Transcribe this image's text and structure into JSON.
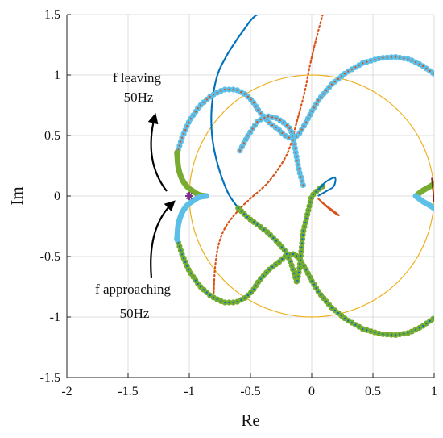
{
  "chart_data": {
    "type": "scatter",
    "title": "",
    "xlabel": "Re",
    "ylabel": "Im",
    "xlim": [
      -2,
      1
    ],
    "ylim": [
      -1.5,
      1.5
    ],
    "xticks": [
      -2,
      -1.5,
      -1,
      -0.5,
      0,
      0.5,
      1
    ],
    "yticks": [
      -1.5,
      -1,
      -0.5,
      0,
      0.5,
      1,
      1.5
    ],
    "xtick_labels": [
      "-2",
      "-1.5",
      "-1",
      "-0.5",
      "0",
      "0.5",
      "1"
    ],
    "ytick_labels": [
      "-1.5",
      "-1",
      "-0.5",
      "0",
      "0.5",
      "1",
      "1.5"
    ],
    "grid": true,
    "colors": {
      "blue": "#0072bd",
      "orange": "#d95319",
      "circle": "#edb120",
      "light_blue": "#5bbfe8",
      "green": "#77ac30",
      "dark_red": "#8b1a1a",
      "marker": "#7e2f8e",
      "arrow": "#000000"
    },
    "unit_circle": {
      "center": [
        0,
        0
      ],
      "radius": 1
    },
    "critical_point": [
      -1,
      0
    ],
    "annotations": {
      "leaving_line1": "f leaving",
      "leaving_line2": "50Hz",
      "approaching_line1": "f approaching",
      "approaching_line2": "50Hz"
    },
    "series": [
      {
        "style": "blue-dotted",
        "x": [
          -0.6,
          -0.68,
          -0.75,
          -0.8,
          -0.82,
          -0.81,
          -0.77,
          -0.7,
          -0.62,
          -0.55,
          -0.5,
          -0.46,
          -0.44
        ],
        "y": [
          -0.1,
          0.02,
          0.2,
          0.4,
          0.6,
          0.8,
          1.0,
          1.15,
          1.28,
          1.38,
          1.45,
          1.49,
          1.5
        ]
      },
      {
        "style": "orange-dotted",
        "x": [
          -0.8,
          -0.79,
          -0.76,
          -0.7,
          -0.6,
          -0.5,
          -0.35,
          -0.2,
          -0.12,
          -0.06,
          -0.03,
          -0.01,
          0.02,
          0.05,
          0.09
        ],
        "y": [
          -0.8,
          -0.6,
          -0.4,
          -0.25,
          -0.12,
          -0.02,
          0.12,
          0.35,
          0.62,
          0.85,
          1.0,
          1.1,
          1.23,
          1.35,
          1.5
        ]
      },
      {
        "style": "light-blue-ring",
        "x": [
          -1.1,
          -1.06,
          -1.0,
          -0.92,
          -0.82,
          -0.72,
          -0.62,
          -0.54,
          -0.48,
          -0.43,
          -0.34,
          -0.26,
          -0.22,
          -0.18,
          -0.14,
          -0.1,
          -0.05,
          0.0,
          0.06,
          0.16,
          0.28,
          0.42,
          0.56,
          0.68,
          0.8,
          0.9,
          0.97,
          1.0
        ],
        "y": [
          0.35,
          0.48,
          0.62,
          0.74,
          0.83,
          0.88,
          0.88,
          0.84,
          0.78,
          0.7,
          0.6,
          0.54,
          0.5,
          0.48,
          0.48,
          0.52,
          0.6,
          0.7,
          0.8,
          0.92,
          1.02,
          1.1,
          1.14,
          1.15,
          1.13,
          1.08,
          1.03,
          1.01
        ]
      },
      {
        "style": "light-blue-ring",
        "x": [
          -0.07,
          -0.1,
          -0.12,
          -0.14,
          -0.17,
          -0.22,
          -0.28,
          -0.36,
          -0.44,
          -0.52,
          -0.6
        ],
        "y": [
          0.09,
          0.2,
          0.3,
          0.42,
          0.55,
          0.6,
          0.64,
          0.66,
          0.62,
          0.5,
          0.35
        ]
      },
      {
        "style": "green-ring",
        "x": [
          -1.1,
          -1.06,
          -1.0,
          -0.92,
          -0.82,
          -0.72,
          -0.62,
          -0.54,
          -0.48,
          -0.43,
          -0.34,
          -0.26,
          -0.22,
          -0.18,
          -0.14,
          -0.1,
          -0.05,
          0.0,
          0.06,
          0.16,
          0.28,
          0.42,
          0.56,
          0.68,
          0.8,
          0.9,
          0.97,
          1.0
        ],
        "y": [
          -0.35,
          -0.48,
          -0.62,
          -0.74,
          -0.83,
          -0.88,
          -0.88,
          -0.84,
          -0.78,
          -0.7,
          -0.6,
          -0.54,
          -0.5,
          -0.48,
          -0.48,
          -0.52,
          -0.6,
          -0.7,
          -0.8,
          -0.92,
          -1.02,
          -1.1,
          -1.14,
          -1.15,
          -1.13,
          -1.08,
          -1.03,
          -1.01
        ]
      },
      {
        "style": "green-ring",
        "x": [
          -0.6,
          -0.52,
          -0.44,
          -0.36,
          -0.28,
          -0.22,
          -0.17,
          -0.14,
          -0.12,
          -0.1,
          -0.07,
          0.0,
          0.05,
          0.09
        ],
        "y": [
          -0.1,
          -0.18,
          -0.24,
          -0.3,
          -0.38,
          -0.45,
          -0.55,
          -0.65,
          -0.72,
          -0.6,
          -0.3,
          0.0,
          0.05,
          0.08
        ]
      }
    ]
  }
}
